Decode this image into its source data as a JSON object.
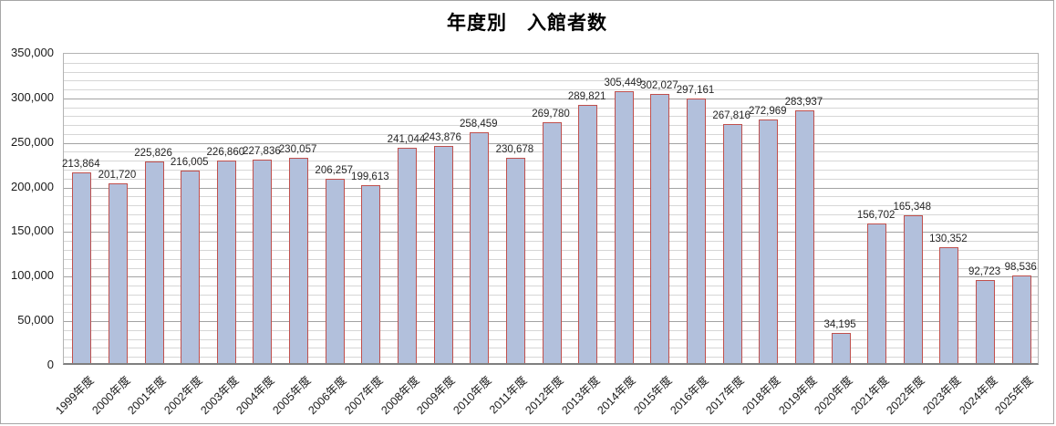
{
  "chart_data": {
    "type": "bar",
    "title": "年度別　入館者数",
    "xlabel": "",
    "ylabel": "",
    "categories": [
      "1999年度",
      "2000年度",
      "2001年度",
      "2002年度",
      "2003年度",
      "2004年度",
      "2005年度",
      "2006年度",
      "2007年度",
      "2008年度",
      "2009年度",
      "2010年度",
      "2011年度",
      "2012年度",
      "2013年度",
      "2014年度",
      "2015年度",
      "2016年度",
      "2017年度",
      "2018年度",
      "2019年度",
      "2020年度",
      "2021年度",
      "2022年度",
      "2023年度",
      "2024年度",
      "2025年度"
    ],
    "values": [
      213864,
      201720,
      225826,
      216005,
      226860,
      227836,
      230057,
      206257,
      199613,
      241044,
      243876,
      258459,
      230678,
      269780,
      289821,
      305449,
      302027,
      297161,
      267816,
      272969,
      283937,
      34195,
      156702,
      165348,
      130352,
      92723,
      98536
    ],
    "ylim": [
      0,
      350000
    ],
    "y_major_step": 50000,
    "y_minor_step": 10000,
    "grid": "horizontal",
    "legend_position": "none",
    "value_labels": true,
    "bar_fill_color": "#b2c0dc",
    "bar_border_color": "#c0504d"
  }
}
